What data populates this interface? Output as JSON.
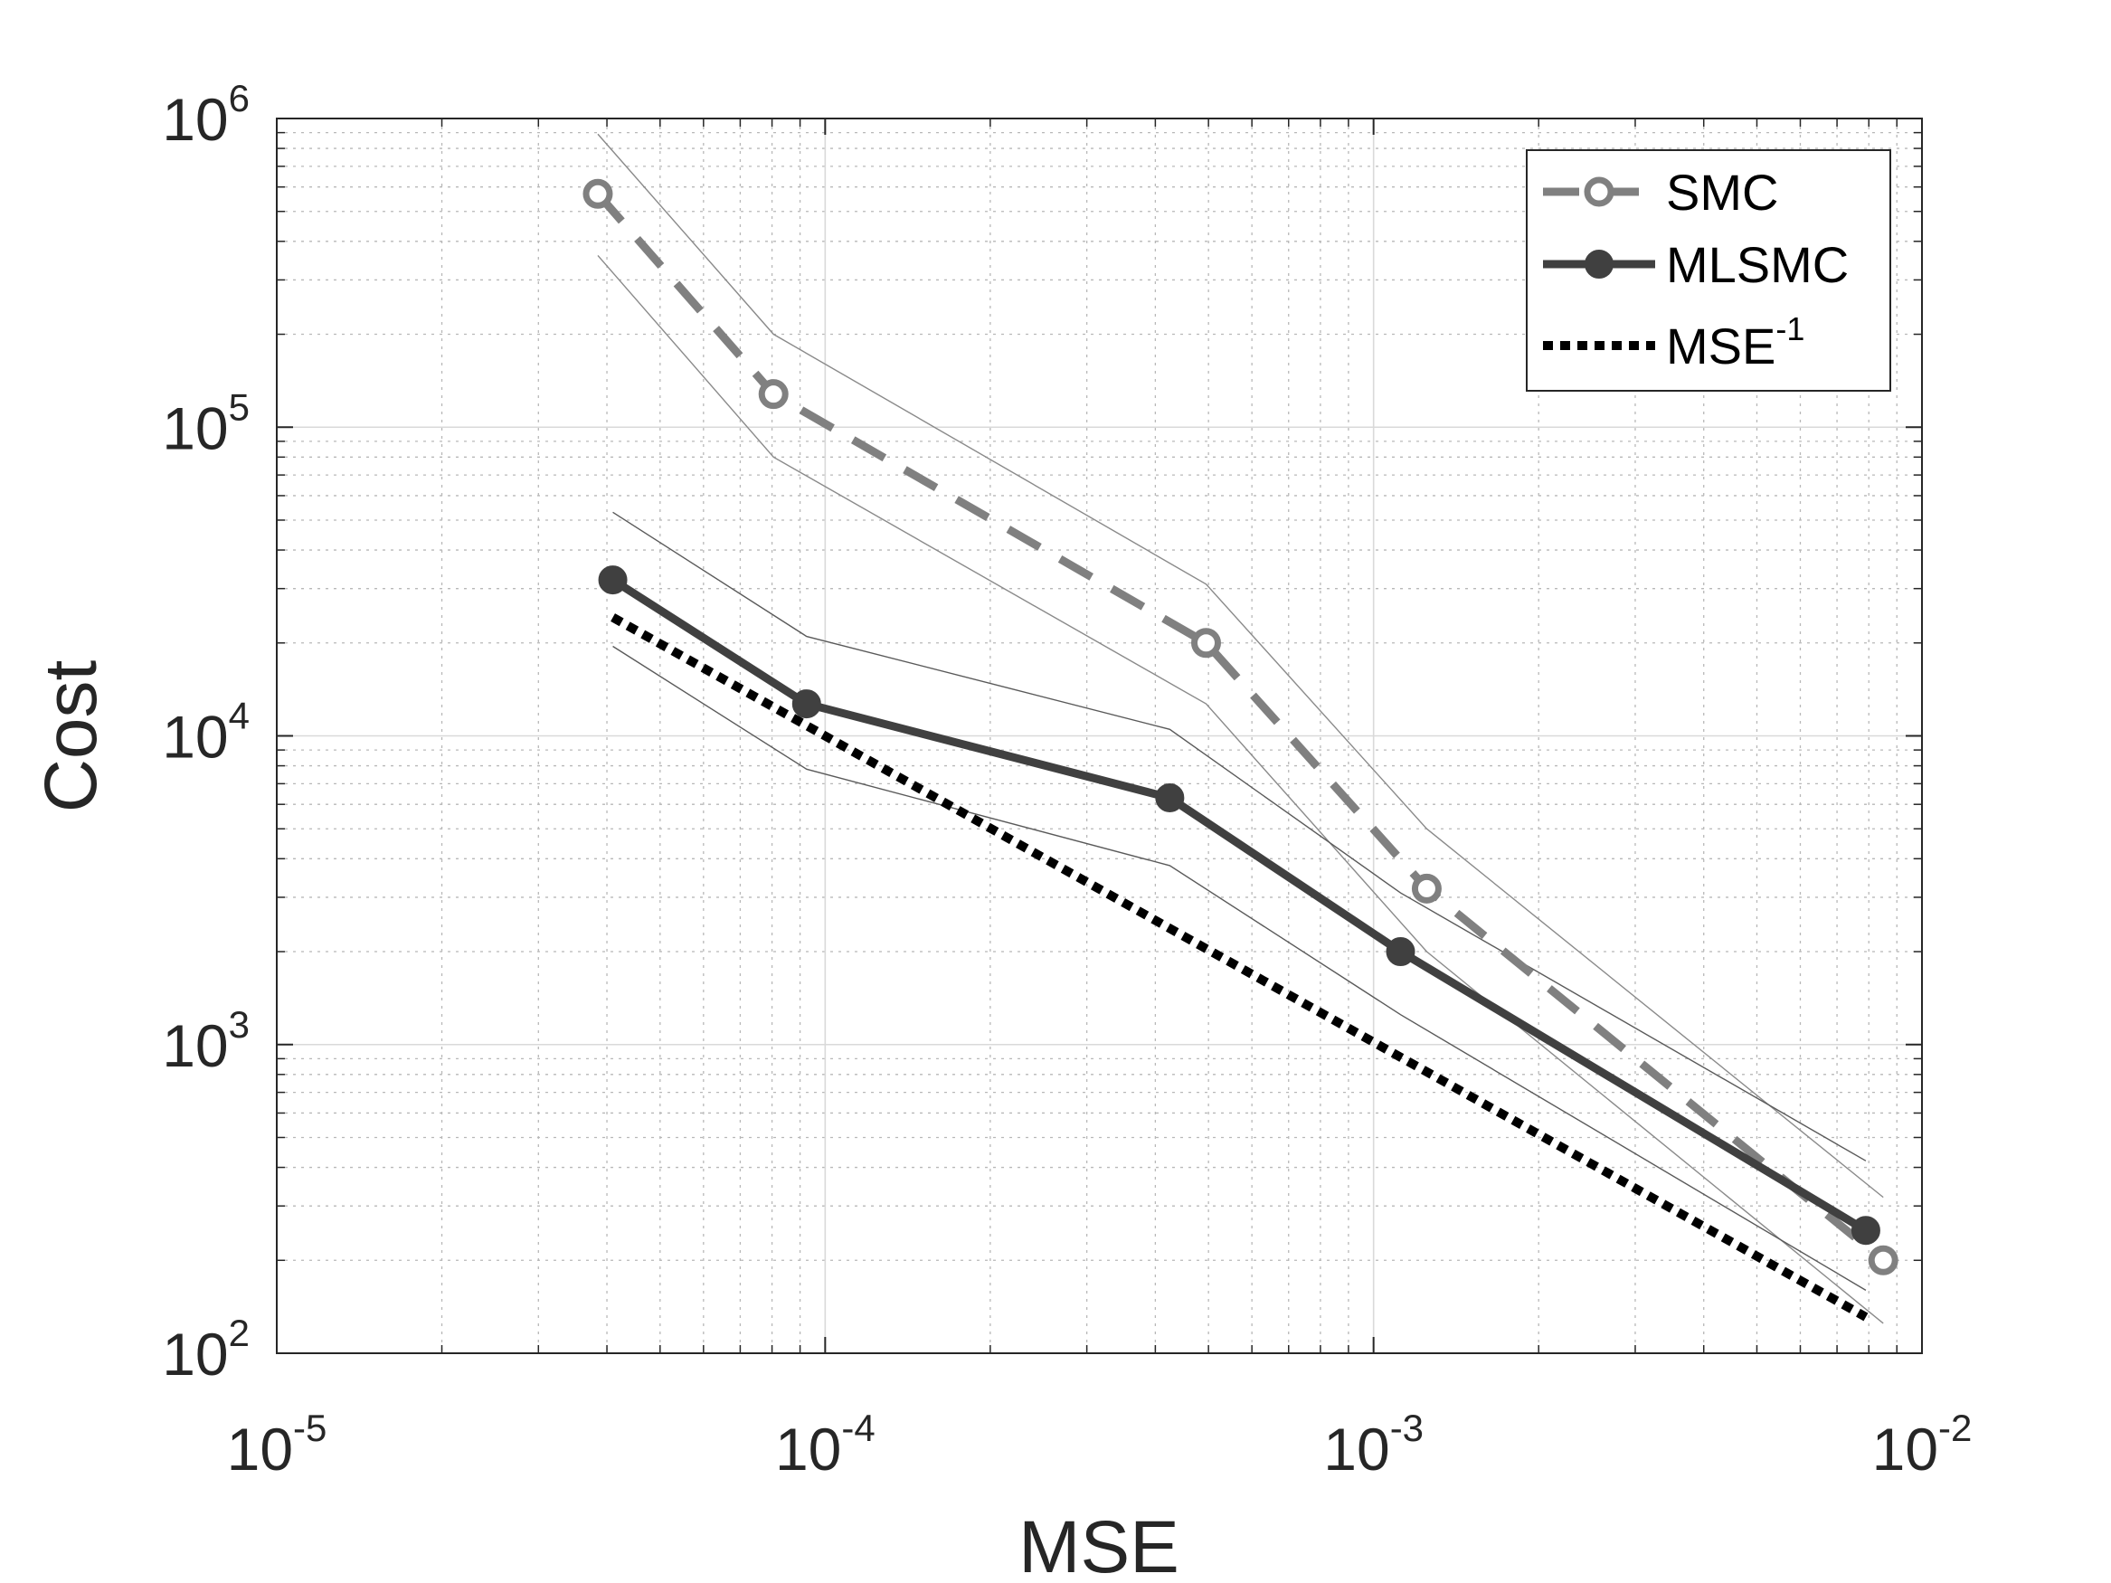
{
  "chart_data": {
    "type": "line",
    "xlabel": "MSE",
    "ylabel": "Cost",
    "xscale": "log",
    "yscale": "log",
    "xlim": [
      1e-05,
      0.01
    ],
    "ylim": [
      100,
      1000000
    ],
    "grid": true,
    "legend_position": "top-right",
    "x_ticks": [
      {
        "base": "10",
        "exp": "-5"
      },
      {
        "base": "10",
        "exp": "-4"
      },
      {
        "base": "10",
        "exp": "-3"
      },
      {
        "base": "10",
        "exp": "-2"
      }
    ],
    "y_ticks": [
      {
        "base": "10",
        "exp": "2"
      },
      {
        "base": "10",
        "exp": "3"
      },
      {
        "base": "10",
        "exp": "4"
      },
      {
        "base": "10",
        "exp": "5"
      },
      {
        "base": "10",
        "exp": "6"
      }
    ],
    "series": [
      {
        "name": "SMC",
        "style": "dashed",
        "marker": "open-circle",
        "color": "#808080",
        "x": [
          3.85e-05,
          8.05e-05,
          0.000495,
          0.00125,
          0.0085
        ],
        "y": [
          570000,
          128000,
          20000,
          3200,
          200
        ]
      },
      {
        "name": "MLSMC",
        "style": "solid",
        "marker": "filled-circle",
        "color": "#404040",
        "x": [
          4.1e-05,
          9.25e-05,
          0.000425,
          0.00112,
          0.0079
        ],
        "y": [
          32000,
          12700,
          6300,
          2000,
          250
        ]
      },
      {
        "name": "MSE",
        "name_sup": "-1",
        "style": "dotted",
        "marker": "none",
        "color": "#000000",
        "x": [
          4.1e-05,
          0.0079
        ],
        "y": [
          24200,
          131
        ]
      }
    ],
    "bands": [
      {
        "of": "SMC",
        "bound": "upper",
        "x": [
          3.85e-05,
          8.05e-05,
          0.000495,
          0.00125,
          0.0085
        ],
        "y": [
          890000,
          200000,
          31000,
          5000,
          320
        ]
      },
      {
        "of": "SMC",
        "bound": "lower",
        "x": [
          3.85e-05,
          8.05e-05,
          0.000495,
          0.00125,
          0.0085
        ],
        "y": [
          360000,
          80000,
          12700,
          2000,
          125
        ]
      },
      {
        "of": "MLSMC",
        "bound": "upper",
        "x": [
          4.1e-05,
          9.25e-05,
          0.000425,
          0.00112,
          0.0079
        ],
        "y": [
          53000,
          21000,
          10500,
          3100,
          420
        ]
      },
      {
        "of": "MLSMC",
        "bound": "lower",
        "x": [
          4.1e-05,
          9.25e-05,
          0.000425,
          0.00112,
          0.0079
        ],
        "y": [
          19500,
          7800,
          3800,
          1250,
          160
        ]
      }
    ]
  }
}
